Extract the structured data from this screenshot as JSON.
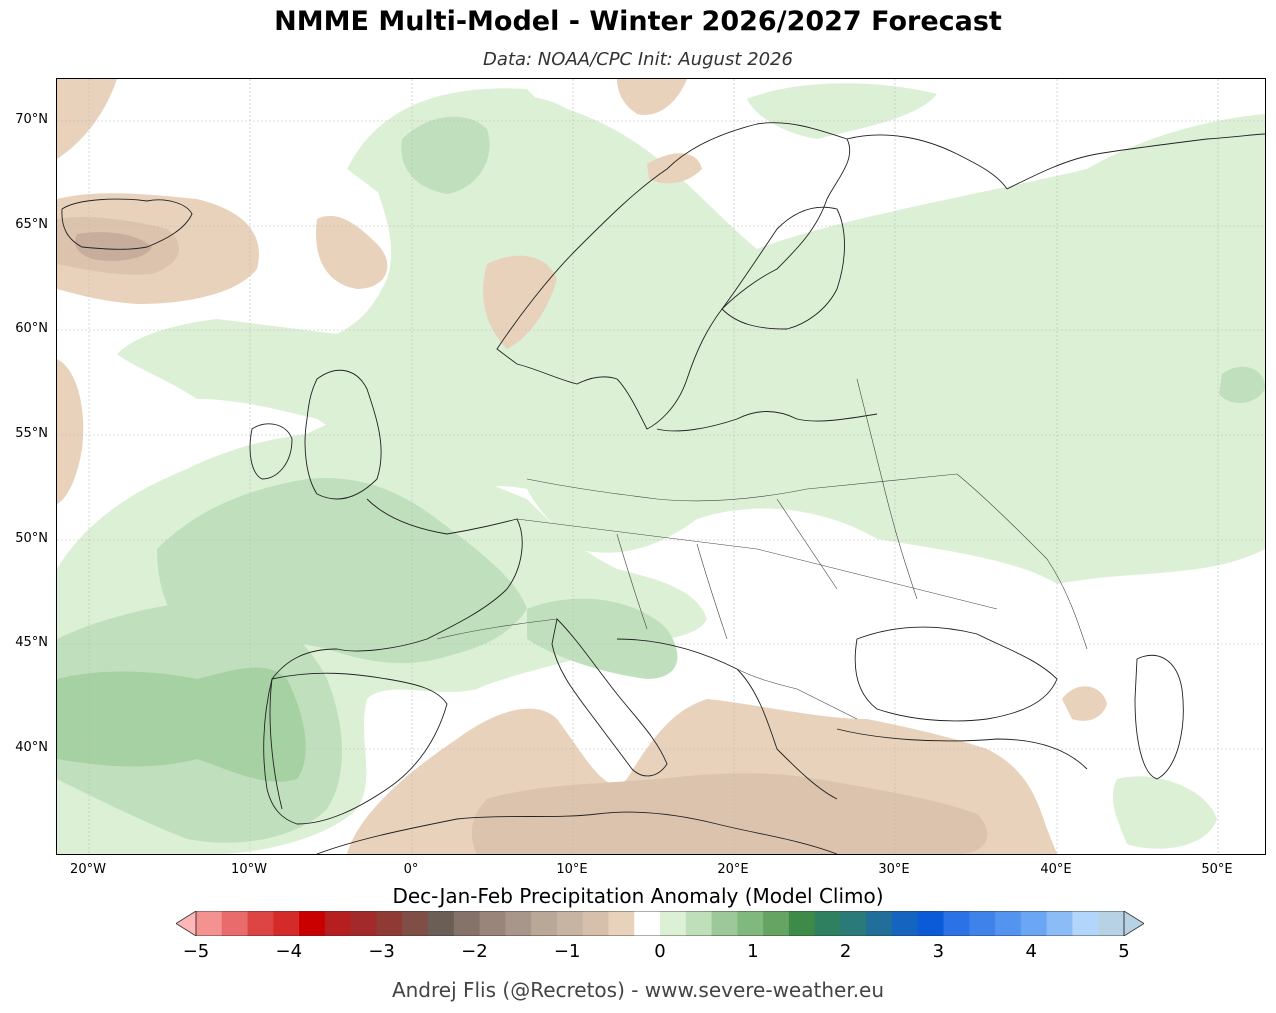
{
  "header": {
    "title": "NMME Multi-Model - Winter 2026/2027 Forecast",
    "subtitle": "Data: NOAA/CPC   Init: August 2026"
  },
  "map": {
    "region": "Europe",
    "lat_labels": [
      "70°N",
      "65°N",
      "60°N",
      "55°N",
      "50°N",
      "45°N",
      "40°N"
    ],
    "lon_labels": [
      "20°W",
      "10°W",
      "0°",
      "10°E",
      "20°E",
      "30°E",
      "40°E",
      "50°E"
    ],
    "anomaly_colors": {
      "dry_light": "#e8d2bb",
      "dry_medium": "#dcc3ad",
      "dry_strong": "#c7ae9c",
      "wet_light": "#dcf0d6",
      "wet_medium": "#c0e0bd",
      "wet_strong": "#a6d1a2"
    }
  },
  "colorbar": {
    "label": "Dec-Jan-Feb Precipitation Anomaly (Model Climo)",
    "ticks": [
      "−5",
      "−4",
      "−3",
      "−2",
      "−1",
      "0",
      "1",
      "2",
      "3",
      "4",
      "5"
    ],
    "colors": [
      "#f49191",
      "#ea6b6b",
      "#dd4444",
      "#d42a2a",
      "#c80000",
      "#b51f1f",
      "#a32a2a",
      "#8f3a35",
      "#7f4e47",
      "#6b5e55",
      "#85736a",
      "#9a857a",
      "#a8968a",
      "#b9a797",
      "#c8b4a3",
      "#d6c0ac",
      "#e8d2bb",
      "#ffffff",
      "#dcf0d6",
      "#bedfba",
      "#9dc99a",
      "#80b87d",
      "#65a462",
      "#3e8a48",
      "#2f8060",
      "#2b7a7a",
      "#226e9a",
      "#1565c0",
      "#0b5ad8",
      "#2a72e6",
      "#3e82ea",
      "#5294ef",
      "#6aa6f3",
      "#8cbcf6",
      "#b2d6fb",
      "#b6d2e4"
    ],
    "under_color": "#ffb6b6",
    "over_color": "#b6d2e4"
  },
  "footer": {
    "credit": "Andrej Flis (@Recretos) - www.severe-weather.eu"
  }
}
